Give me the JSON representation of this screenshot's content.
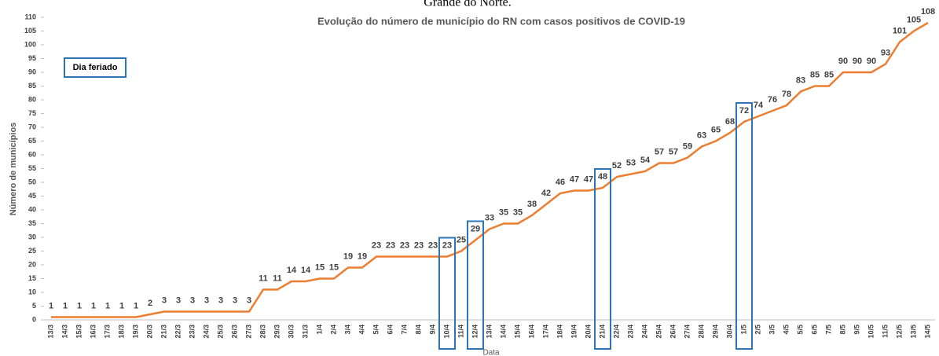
{
  "caption": "Grande do Norte.",
  "chart_data": {
    "type": "line",
    "title": "Evolução do número de município do RN com casos positivos de COVID-19",
    "x_label": "Data",
    "y_label": "Número de municípios",
    "legend_label": "Dia feriado",
    "categories": [
      "13/3",
      "14/3",
      "15/3",
      "16/3",
      "17/3",
      "18/3",
      "19/3",
      "20/3",
      "21/3",
      "22/3",
      "23/3",
      "24/3",
      "25/3",
      "26/3",
      "27/3",
      "28/3",
      "29/3",
      "30/3",
      "31/3",
      "1/4",
      "2/4",
      "3/4",
      "4/4",
      "5/4",
      "6/4",
      "7/4",
      "8/4",
      "9/4",
      "10/4",
      "11/4",
      "12/4",
      "13/4",
      "14/4",
      "15/4",
      "16/4",
      "17/4",
      "18/4",
      "19/4",
      "20/4",
      "21/4",
      "22/4",
      "23/4",
      "24/4",
      "25/4",
      "26/4",
      "27/4",
      "28/4",
      "29/4",
      "30/4",
      "1/5",
      "2/5",
      "3/5",
      "4/5",
      "5/5",
      "6/5",
      "7/5",
      "8/5",
      "9/5",
      "10/5",
      "11/5",
      "12/5",
      "13/5",
      "14/5"
    ],
    "values": [
      1,
      1,
      1,
      1,
      1,
      1,
      1,
      2,
      3,
      3,
      3,
      3,
      3,
      3,
      3,
      11,
      11,
      14,
      14,
      15,
      15,
      19,
      19,
      23,
      23,
      23,
      23,
      23,
      23,
      25,
      29,
      33,
      35,
      35,
      38,
      42,
      46,
      47,
      47,
      48,
      52,
      53,
      54,
      57,
      57,
      59,
      63,
      65,
      68,
      72,
      74,
      76,
      78,
      83,
      85,
      85,
      90,
      90,
      90,
      93,
      101,
      105,
      108
    ],
    "color": "#ed7d31",
    "highlight_color": "#2e75b6",
    "highlighted": [
      "10/4",
      "12/4",
      "21/4",
      "1/5"
    ],
    "ylim": [
      0,
      110
    ],
    "yticks": [
      0,
      5,
      10,
      15,
      20,
      25,
      30,
      35,
      40,
      45,
      50,
      55,
      60,
      65,
      70,
      75,
      80,
      85,
      90,
      95,
      100,
      105,
      110
    ]
  }
}
